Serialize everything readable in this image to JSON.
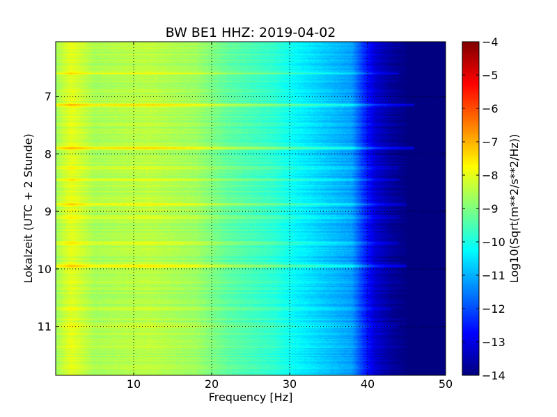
{
  "chart_data": {
    "type": "heatmap",
    "title": "BW BE1 HHZ: 2019-04-02",
    "xlabel": "Frequency [Hz]",
    "ylabel": "Lokalzeit (UTC + 2 Stunde)",
    "xlim": [
      0,
      50
    ],
    "ylim": [
      6.05,
      11.85
    ],
    "y_inverted": true,
    "x_ticks": [
      10,
      20,
      30,
      40,
      50
    ],
    "x_tick_labels": [
      "10",
      "20",
      "30",
      "40",
      "50"
    ],
    "y_ticks": [
      7,
      8,
      9,
      10,
      11
    ],
    "y_tick_labels": [
      "7",
      "8",
      "9",
      "10",
      "11"
    ],
    "grid": true,
    "colormap": "jet",
    "colorbar": {
      "label": "Log10(Sqrt(m**2/s**2/Hz))",
      "range": [
        -14,
        -4
      ],
      "ticks": [
        -4,
        -5,
        -6,
        -7,
        -8,
        -9,
        -10,
        -11,
        -12,
        -13,
        -14
      ],
      "tick_labels": [
        "−4",
        "−5",
        "−6",
        "−7",
        "−8",
        "−9",
        "−10",
        "−11",
        "−12",
        "−13",
        "−14"
      ]
    },
    "spectral_profile": {
      "frequency_hz": [
        0,
        1,
        2,
        3,
        5,
        8,
        12,
        18,
        22,
        28,
        31,
        34,
        38,
        39.5,
        41,
        43,
        45,
        50
      ],
      "log10_psd": [
        -8.7,
        -8.3,
        -8.0,
        -8.2,
        -8.6,
        -8.5,
        -8.4,
        -8.7,
        -9.3,
        -9.8,
        -10.3,
        -10.7,
        -11.2,
        -12.3,
        -13.2,
        -13.7,
        -14.0,
        -14.0
      ]
    },
    "bright_bands_local_time": [
      {
        "time": 6.6,
        "offset": 0.6,
        "fmax_hz": 44
      },
      {
        "time": 7.15,
        "offset": 1.1,
        "fmax_hz": 46
      },
      {
        "time": 7.9,
        "offset": 1.3,
        "fmax_hz": 46
      },
      {
        "time": 8.25,
        "offset": 0.5,
        "fmax_hz": 44
      },
      {
        "time": 8.45,
        "offset": 0.6,
        "fmax_hz": 44
      },
      {
        "time": 8.88,
        "offset": 0.9,
        "fmax_hz": 45
      },
      {
        "time": 9.1,
        "offset": 0.5,
        "fmax_hz": 44
      },
      {
        "time": 9.55,
        "offset": 0.7,
        "fmax_hz": 44
      },
      {
        "time": 9.95,
        "offset": 0.9,
        "fmax_hz": 45
      },
      {
        "time": 10.7,
        "offset": 0.4,
        "fmax_hz": 43
      },
      {
        "time": 11.0,
        "offset": 0.5,
        "fmax_hz": 44
      }
    ]
  }
}
